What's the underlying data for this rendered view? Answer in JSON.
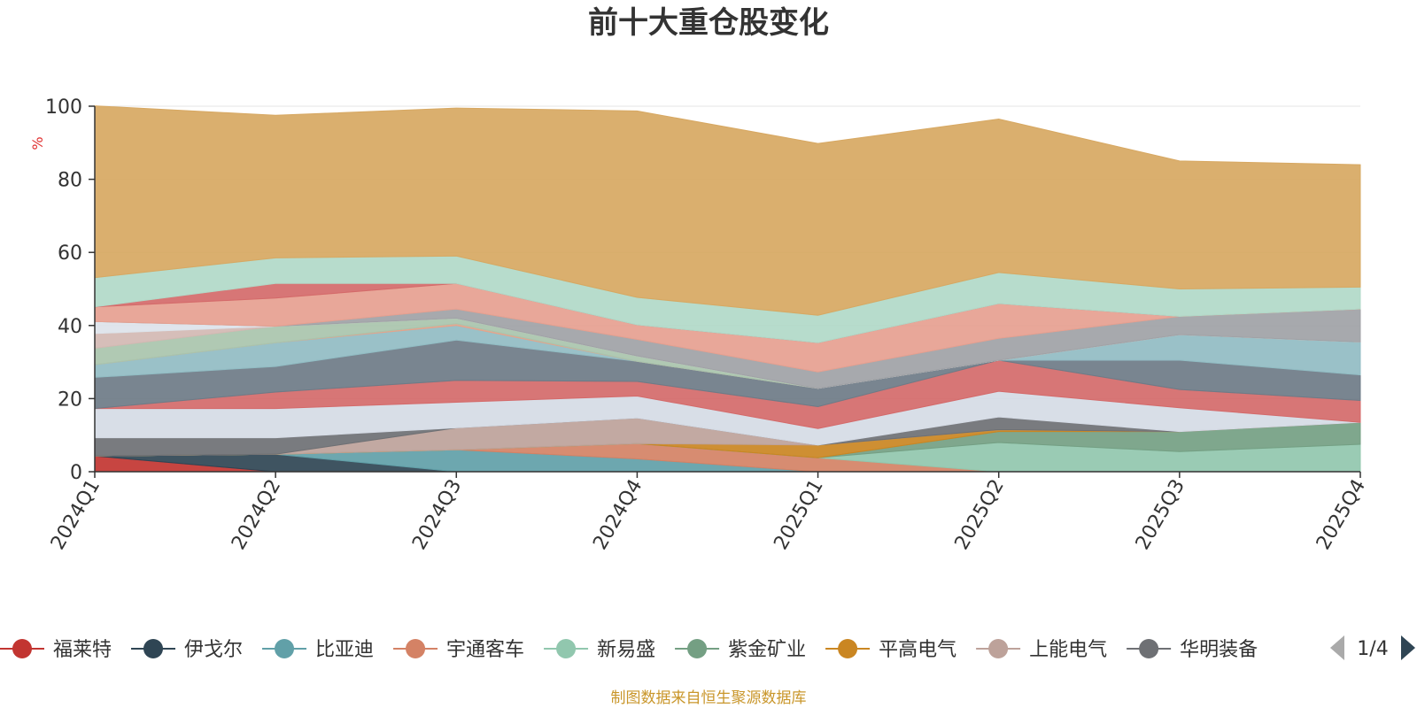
{
  "chart_data": {
    "type": "area",
    "stacked": true,
    "title": "前十大重仓股变化",
    "ylabel": "%",
    "ylim": [
      0,
      100
    ],
    "yticks": [
      "0",
      "20",
      "40",
      "60",
      "80",
      "100"
    ],
    "categories": [
      "2024Q1",
      "2024Q2",
      "2024Q3",
      "2024Q4",
      "2025Q1",
      "2025Q2",
      "2025Q3",
      "2025Q4"
    ],
    "grid": true,
    "legend_position": "bottom",
    "series": [
      {
        "name": "福莱特",
        "color": "#c23531",
        "values": [
          4.3,
          0,
          0,
          0,
          0,
          0,
          0,
          0
        ]
      },
      {
        "name": "伊戈尔",
        "color": "#2f4554",
        "values": [
          0,
          4.8,
          0,
          0,
          0,
          0,
          0,
          0
        ]
      },
      {
        "name": "比亚迪",
        "color": "#61a0a8",
        "values": [
          0,
          0,
          6.0,
          3.5,
          0,
          0,
          0,
          0
        ]
      },
      {
        "name": "宇通客车",
        "color": "#d48265",
        "values": [
          0,
          0,
          0,
          4.2,
          3.8,
          0,
          0,
          0
        ]
      },
      {
        "name": "新易盛",
        "color": "#91c7ae",
        "values": [
          0,
          0,
          0,
          0,
          0,
          8.0,
          5.5,
          7.5
        ]
      },
      {
        "name": "紫金矿业",
        "color": "#749f83",
        "values": [
          0,
          0,
          0,
          0,
          0,
          3.0,
          5.5,
          6.0
        ]
      },
      {
        "name": "平高电气",
        "color": "#ca8622",
        "values": [
          0,
          0,
          0,
          0,
          3.5,
          0.5,
          0,
          0
        ]
      },
      {
        "name": "上能电气",
        "color": "#bda29a",
        "values": [
          0,
          0,
          6.0,
          7.0,
          0,
          0,
          0,
          0
        ]
      },
      {
        "name": "华明装备",
        "color": "#6e7074",
        "values": [
          5.0,
          4.5,
          0,
          0,
          0,
          3.5,
          0,
          0
        ]
      },
      {
        "name": "",
        "color": "#d5dbe5",
        "values": [
          8.0,
          8.0,
          7.0,
          6.0,
          4.5,
          7.0,
          6.5,
          0
        ]
      },
      {
        "name": "",
        "color": "#d46a6a",
        "values": [
          0,
          4.5,
          6.0,
          4.0,
          6.0,
          8.5,
          5.0,
          6.0
        ]
      },
      {
        "name": "",
        "color": "#6e7b87",
        "values": [
          8.5,
          7.0,
          11.0,
          5.5,
          5.0,
          0,
          8.0,
          7.0
        ]
      },
      {
        "name": "",
        "color": "#91bcc3",
        "values": [
          3.5,
          6.5,
          4.0,
          0,
          0,
          0,
          7.0,
          9.0
        ]
      },
      {
        "name": "",
        "color": "#e3a48c",
        "values": [
          0,
          0,
          0.5,
          0,
          0,
          0,
          0,
          0
        ]
      },
      {
        "name": "",
        "color": "#a9c4ad",
        "values": [
          4.5,
          4.5,
          1.5,
          1.5,
          0,
          0,
          0,
          0
        ]
      },
      {
        "name": "",
        "color": "#d3b9b3",
        "values": [
          4.0,
          0,
          0,
          0,
          0,
          0,
          0,
          0
        ]
      },
      {
        "name": "",
        "color": "#dde3ea",
        "values": [
          3.3,
          0,
          0,
          0,
          0,
          0,
          0,
          0
        ]
      },
      {
        "name": "",
        "color": "#a0a2a6",
        "values": [
          0,
          0,
          2.5,
          4.5,
          4.5,
          6.0,
          5.0,
          9.0
        ]
      },
      {
        "name": "",
        "color": "#e6a090",
        "values": [
          4.0,
          7.7,
          7.0,
          4.0,
          8.0,
          9.5,
          0,
          0
        ]
      },
      {
        "name": "",
        "color": "#d46a6a",
        "values": [
          0,
          4.0,
          0,
          0,
          0,
          0,
          0,
          0
        ]
      },
      {
        "name": "",
        "color": "#b1d9c8",
        "values": [
          8.0,
          7.0,
          7.5,
          7.5,
          7.5,
          8.5,
          7.5,
          6.0
        ]
      },
      {
        "name": "",
        "color": "#d7a862",
        "values": [
          47.0,
          39.0,
          40.5,
          51.0,
          47.0,
          42.0,
          35.0,
          33.5
        ]
      }
    ]
  },
  "legend": {
    "items": [
      {
        "name": "福莱特",
        "color": "#c23531"
      },
      {
        "name": "伊戈尔",
        "color": "#2f4554"
      },
      {
        "name": "比亚迪",
        "color": "#61a0a8"
      },
      {
        "name": "宇通客车",
        "color": "#d48265"
      },
      {
        "name": "新易盛",
        "color": "#91c7ae"
      },
      {
        "name": "紫金矿业",
        "color": "#749f83"
      },
      {
        "name": "平高电气",
        "color": "#ca8622"
      },
      {
        "name": "上能电气",
        "color": "#bda29a"
      },
      {
        "name": "华明装备",
        "color": "#6e7074"
      }
    ],
    "page_indicator": "1/4",
    "prev_icon": "triangle-left-icon",
    "next_icon": "triangle-right-icon"
  },
  "source_note": "制图数据来自恒生聚源数据库"
}
